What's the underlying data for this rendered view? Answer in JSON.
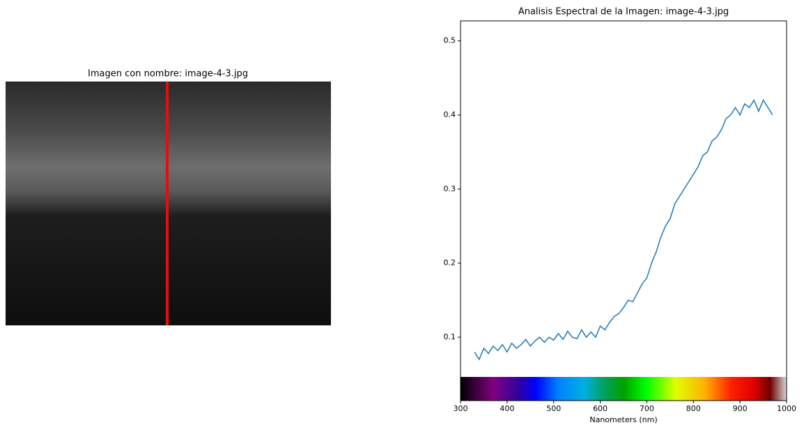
{
  "image_panel": {
    "title": "Imagen con nombre: image-4-3.jpg"
  },
  "chart_data": {
    "type": "line",
    "title": "Analisis Espectral de la Imagen: image-4-3.jpg",
    "x_label": "Nanometers (nm)",
    "color": "#1f77b4",
    "x": [
      330,
      340,
      350,
      360,
      370,
      380,
      390,
      400,
      410,
      420,
      430,
      440,
      450,
      460,
      470,
      480,
      490,
      500,
      510,
      520,
      530,
      540,
      550,
      560,
      570,
      580,
      590,
      600,
      610,
      620,
      630,
      640,
      650,
      660,
      670,
      680,
      690,
      700,
      710,
      720,
      730,
      740,
      750,
      760,
      770,
      780,
      790,
      800,
      810,
      820,
      830,
      840,
      850,
      860,
      870,
      880,
      890,
      900,
      910,
      920,
      930,
      940,
      950,
      960,
      970
    ],
    "values": [
      0.08,
      0.07,
      0.085,
      0.078,
      0.088,
      0.082,
      0.09,
      0.08,
      0.092,
      0.085,
      0.09,
      0.097,
      0.088,
      0.095,
      0.1,
      0.093,
      0.1,
      0.096,
      0.105,
      0.097,
      0.108,
      0.1,
      0.098,
      0.11,
      0.1,
      0.107,
      0.1,
      0.115,
      0.11,
      0.12,
      0.128,
      0.132,
      0.14,
      0.15,
      0.148,
      0.16,
      0.172,
      0.18,
      0.2,
      0.215,
      0.235,
      0.25,
      0.26,
      0.28,
      0.29,
      0.3,
      0.31,
      0.32,
      0.33,
      0.345,
      0.35,
      0.365,
      0.37,
      0.38,
      0.395,
      0.4,
      0.41,
      0.4,
      0.415,
      0.41,
      0.42,
      0.405,
      0.42,
      0.41,
      0.4
    ],
    "xlim": [
      300,
      1000
    ],
    "xticks": [
      300,
      400,
      500,
      600,
      700,
      800,
      900,
      1000
    ],
    "ylim": [
      0.0144,
      0.527
    ],
    "yticks": [
      0.1,
      0.2,
      0.3,
      0.4,
      0.5
    ]
  }
}
